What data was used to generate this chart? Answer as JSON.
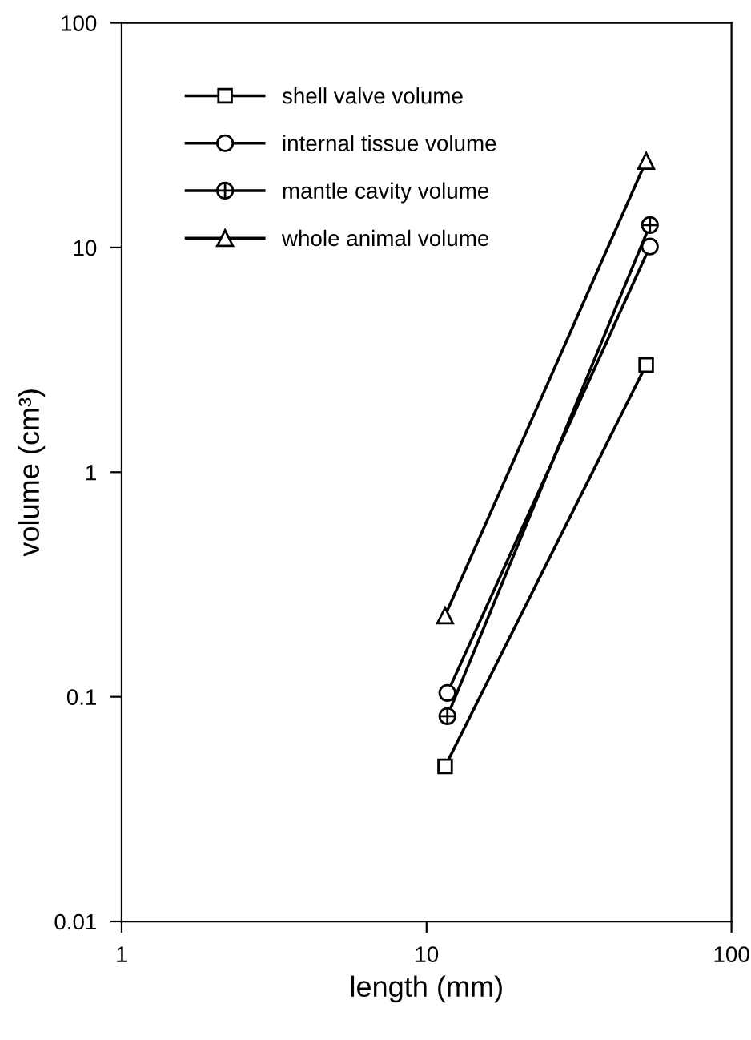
{
  "chart_data": {
    "type": "line",
    "xlabel": "length (mm)",
    "ylabel": "volume (cm³)",
    "log": "xy",
    "xlim": [
      1,
      100
    ],
    "ylim": [
      0.01,
      100
    ],
    "xticks": [
      1,
      10,
      100
    ],
    "yticks": [
      0.01,
      0.1,
      1,
      10,
      100
    ],
    "grid": false,
    "legend": "top left",
    "series": [
      {
        "name": "shell valve volume",
        "color": "#000000",
        "marker": "square",
        "x": [
          11.5,
          52.5
        ],
        "values": [
          0.049,
          3.0
        ]
      },
      {
        "name": "internal tissue volume",
        "color": "#000000",
        "marker": "circle",
        "x": [
          11.7,
          54
        ],
        "values": [
          0.104,
          10.1
        ]
      },
      {
        "name": "mantle cavity volume",
        "color": "#000000",
        "marker": "circled plus",
        "x": [
          11.7,
          54
        ],
        "values": [
          0.082,
          12.6
        ]
      },
      {
        "name": "whole animal volume",
        "color": "#000000",
        "marker": "triangle",
        "x": [
          11.5,
          52.5
        ],
        "values": [
          0.23,
          24.3
        ]
      }
    ]
  }
}
